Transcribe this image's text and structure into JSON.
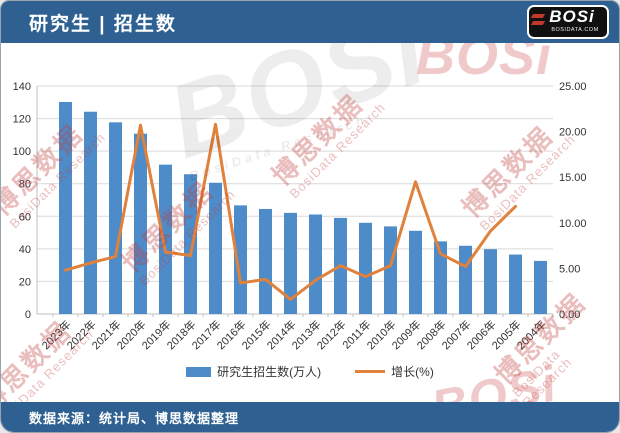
{
  "header": {
    "title": "研究生 | 招生数",
    "logo": {
      "text": "BOSi",
      "subtext": "BOSIDATA.COM"
    }
  },
  "footer": {
    "source": "数据来源：统计局、博思数据整理"
  },
  "watermark": {
    "line1": "博思数据",
    "line2": "BosiData Research",
    "logo": "BOSi"
  },
  "colors": {
    "header_bg": "#2E6191",
    "bar": "#4E8BC9",
    "line": "#E0813C",
    "grid": "#D9D9D9",
    "axis_line": "#BFBFBF",
    "text": "#333333"
  },
  "chart_data": {
    "type": "bar",
    "title": "研究生 | 招生数",
    "categories": [
      "2023年",
      "2022年",
      "2021年",
      "2020年",
      "2019年",
      "2018年",
      "2017年",
      "2016年",
      "2015年",
      "2014年",
      "2013年",
      "2012年",
      "2011年",
      "2010年",
      "2009年",
      "2008年",
      "2007年",
      "2006年",
      "2005年",
      "2004年"
    ],
    "series": [
      {
        "name": "研究生招生数(万人)",
        "type": "bar",
        "axis": "left",
        "values": [
          130.2,
          124.2,
          117.7,
          110.7,
          91.7,
          85.8,
          80.6,
          66.7,
          64.5,
          62.1,
          61.1,
          59.0,
          56.0,
          53.8,
          51.1,
          44.6,
          41.9,
          39.8,
          36.5,
          32.6
        ]
      },
      {
        "name": "增长(%)",
        "type": "line",
        "axis": "right",
        "values": [
          4.8,
          5.6,
          6.3,
          20.7,
          6.8,
          6.4,
          20.8,
          3.4,
          3.8,
          1.6,
          3.7,
          5.3,
          4.1,
          5.3,
          14.5,
          6.6,
          5.2,
          9.1,
          11.8,
          null
        ]
      }
    ],
    "left_axis": {
      "min": 0,
      "max": 140,
      "step": 20,
      "ticks": [
        "0",
        "20",
        "40",
        "60",
        "80",
        "100",
        "120",
        "140"
      ]
    },
    "right_axis": {
      "min": 0,
      "max": 25,
      "step": 5,
      "ticks": [
        "0.00",
        "5.00",
        "10.00",
        "15.00",
        "20.00",
        "25.00"
      ]
    },
    "legend_position": "bottom",
    "grid": "horizontal"
  }
}
